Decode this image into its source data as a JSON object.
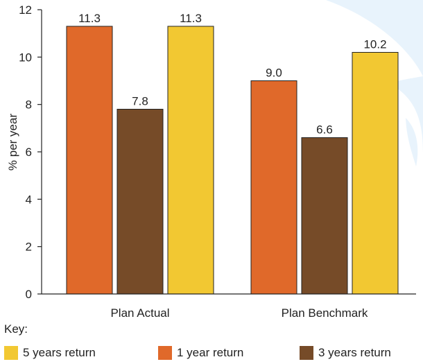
{
  "chart_data": {
    "type": "bar",
    "categories": [
      "Plan Actual",
      "Plan Benchmark"
    ],
    "series": [
      {
        "name": "1 year return",
        "values": [
          11.3,
          9.0
        ],
        "labels": [
          "11.3",
          "9.0"
        ],
        "color": "#E0692A"
      },
      {
        "name": "3 years return",
        "values": [
          7.8,
          6.6
        ],
        "labels": [
          "7.8",
          "6.6"
        ],
        "color": "#764B28"
      },
      {
        "name": "5 years return",
        "values": [
          11.3,
          10.2
        ],
        "labels": [
          "11.3",
          "10.2"
        ],
        "color": "#F2C832"
      }
    ],
    "ylabel": "% per year",
    "ylim": [
      0,
      12
    ],
    "yticks": [
      "0",
      "2",
      "4",
      "6",
      "8",
      "10",
      "12"
    ],
    "grid": false,
    "legend_title": "Key:",
    "legend_position": "bottom",
    "watermark_color": "#E8F3FC"
  }
}
